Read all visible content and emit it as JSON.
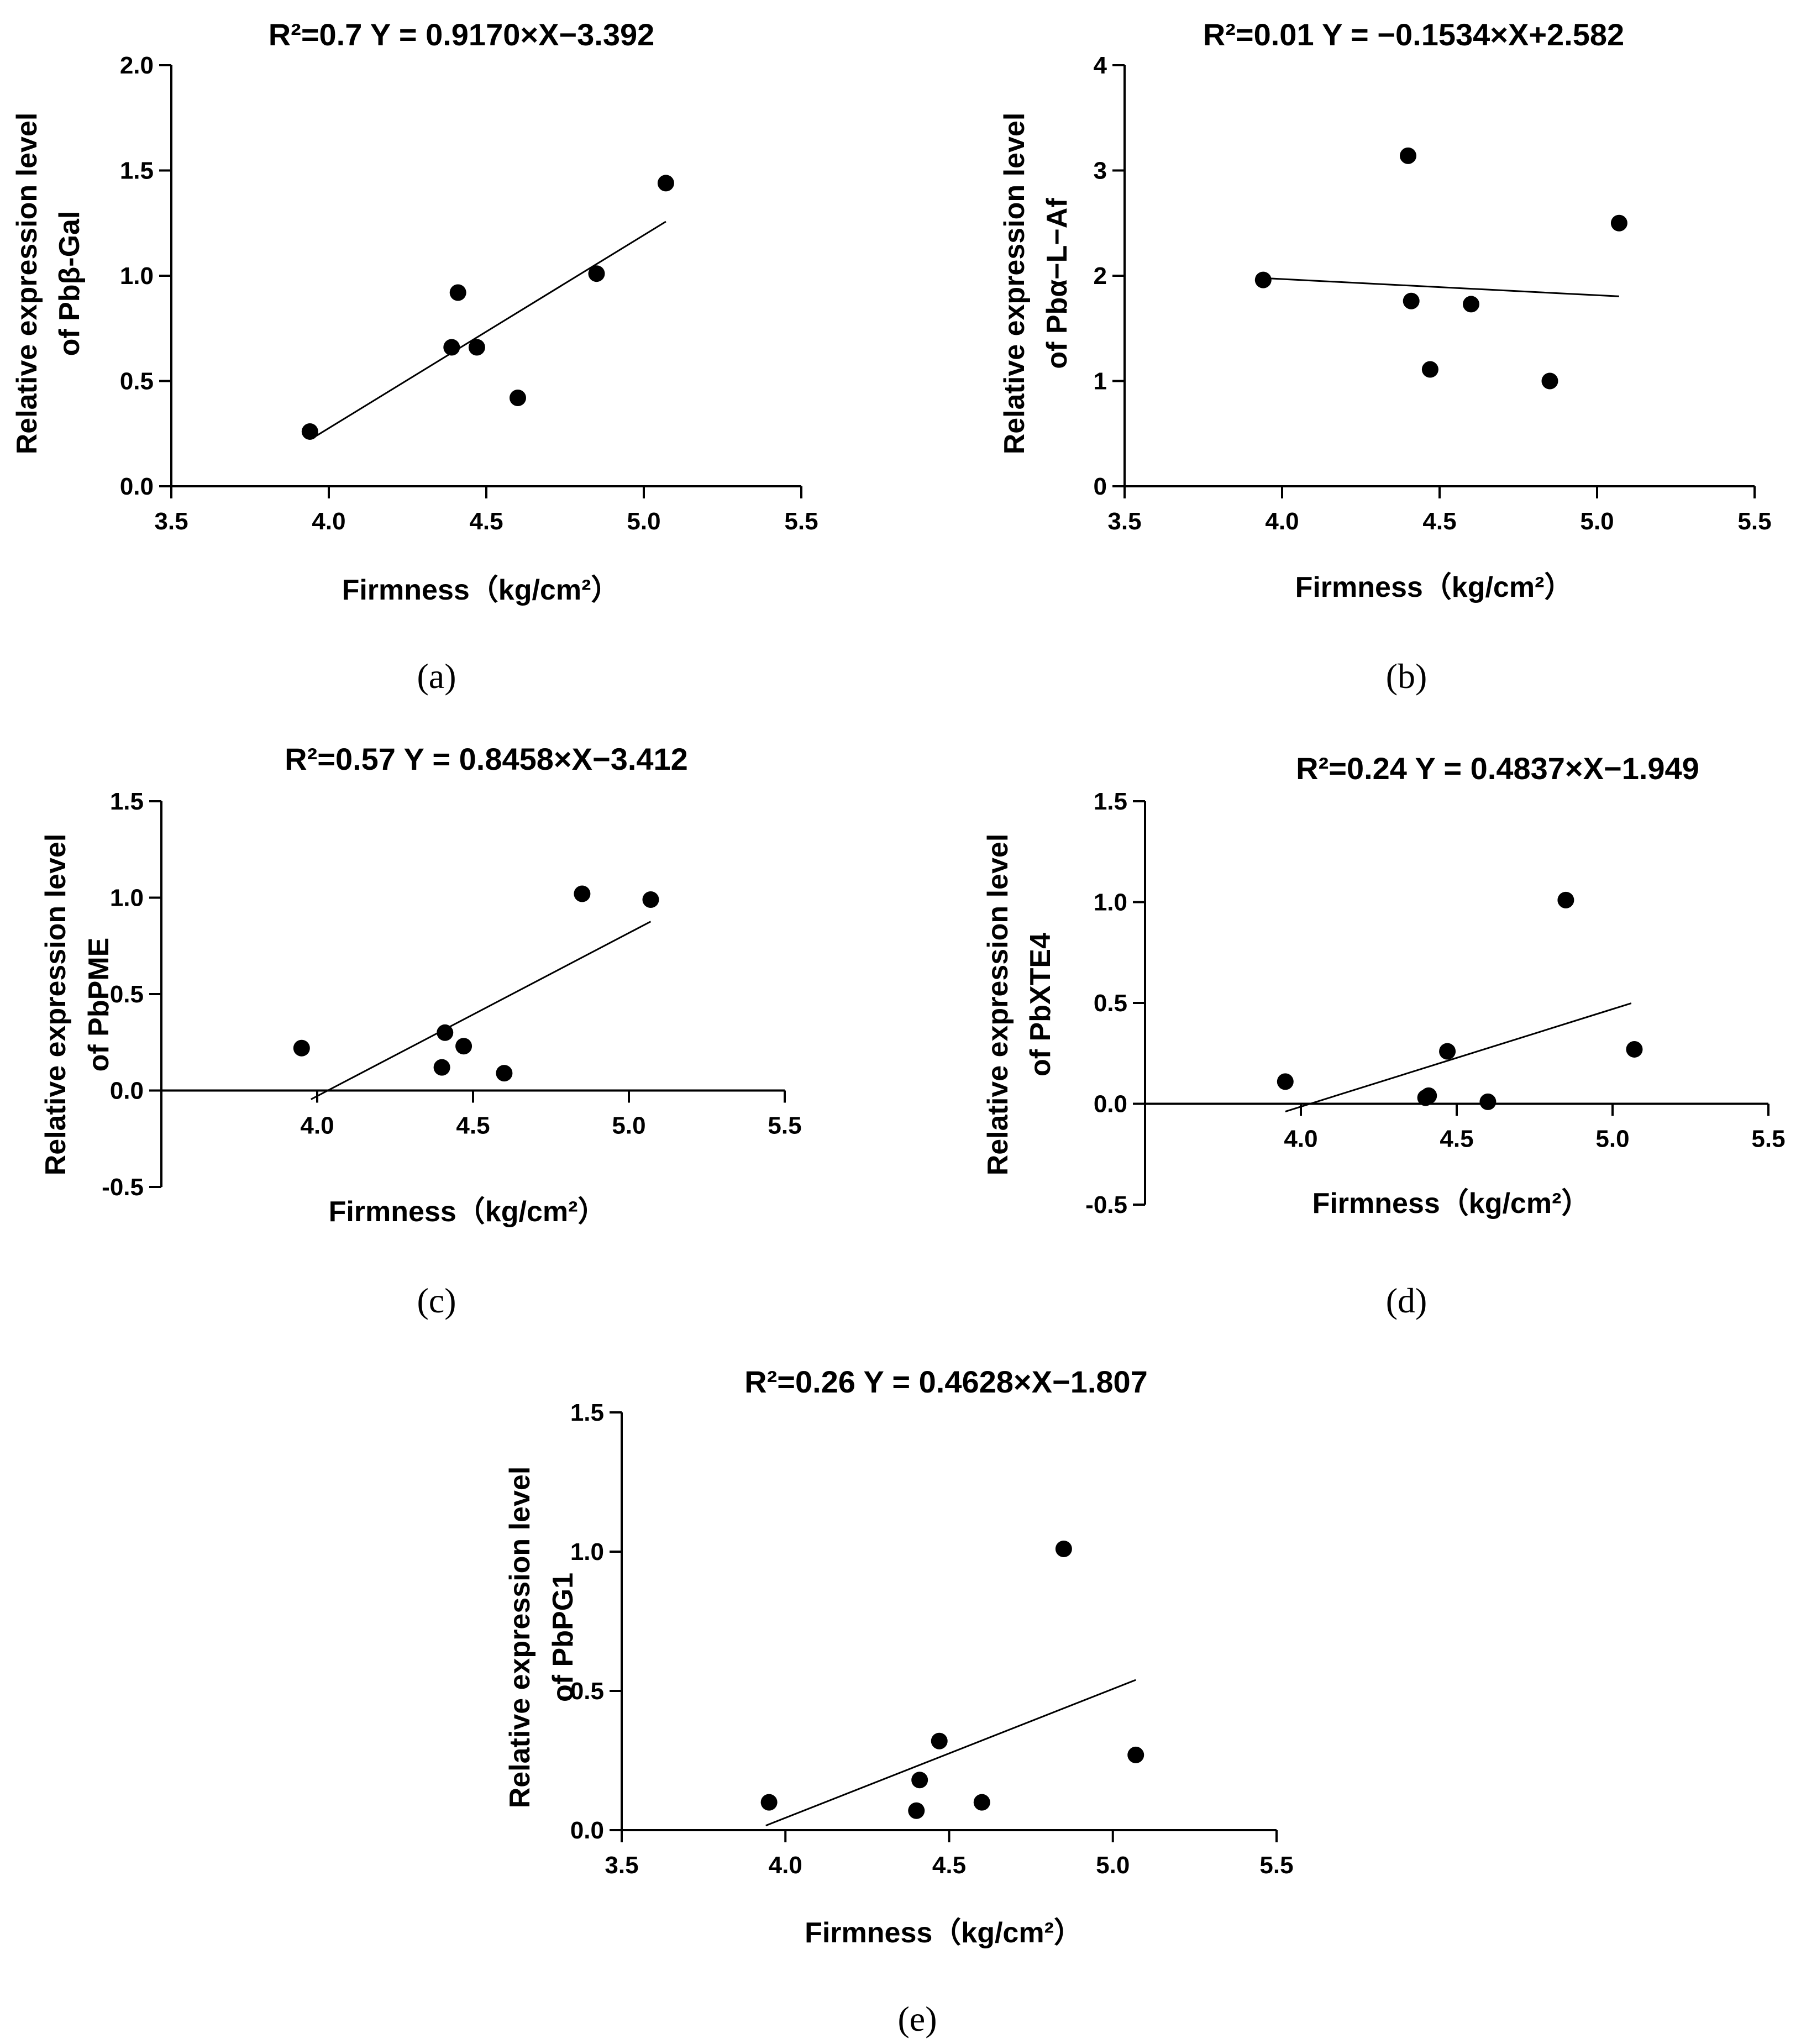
{
  "chart_data": [
    {
      "type": "scatter",
      "panel": "(a)",
      "title": "R²=0.7    Y = 0.9170×X−3.392",
      "ylabel": [
        "Relative expression level",
        "of Pbβ-Gal"
      ],
      "xlabel": "Firmness（kg/cm²）",
      "xlim": [
        3.5,
        5.5
      ],
      "ylim": [
        0.0,
        2.0
      ],
      "x_ticks": [
        "3.5",
        "4.0",
        "4.5",
        "5.0",
        "5.5"
      ],
      "y_ticks": [
        "0.0",
        "0.5",
        "1.0",
        "1.5",
        "2.0"
      ],
      "points": [
        [
          3.94,
          0.26
        ],
        [
          4.39,
          0.66
        ],
        [
          4.41,
          0.92
        ],
        [
          4.47,
          0.66
        ],
        [
          4.6,
          0.42
        ],
        [
          4.85,
          1.01
        ],
        [
          5.07,
          1.44
        ]
      ],
      "fit": {
        "slope": 0.917,
        "intercept": -3.392,
        "x_range": [
          3.95,
          5.07
        ]
      }
    },
    {
      "type": "scatter",
      "panel": "(b)",
      "title": "R²=0.01  Y = −0.1534×X+2.582",
      "ylabel": [
        "Relative expression level",
        "of Pbα−L−Af"
      ],
      "xlabel": "Firmness（kg/cm²）",
      "xlim": [
        3.5,
        5.5
      ],
      "ylim": [
        0,
        4
      ],
      "x_ticks": [
        "3.5",
        "4.0",
        "4.5",
        "5.0",
        "5.5"
      ],
      "y_ticks": [
        "0",
        "1",
        "2",
        "3",
        "4"
      ],
      "points": [
        [
          3.94,
          1.96
        ],
        [
          4.4,
          3.14
        ],
        [
          4.41,
          1.76
        ],
        [
          4.47,
          1.11
        ],
        [
          4.6,
          1.73
        ],
        [
          4.85,
          1.0
        ],
        [
          5.07,
          2.5
        ]
      ],
      "fit": {
        "slope": -0.1534,
        "intercept": 2.582,
        "x_range": [
          3.94,
          5.07
        ]
      }
    },
    {
      "type": "scatter",
      "panel": "(c)",
      "title": "R²=0.57  Y = 0.8458×X−3.412",
      "ylabel": [
        "Relative expression level",
        "of PbPME"
      ],
      "xlabel": "Firmness（kg/cm²）",
      "xlim": [
        3.5,
        5.5
      ],
      "ylim": [
        -0.5,
        1.5
      ],
      "x_ticks": [
        "4.0",
        "4.5",
        "5.0",
        "5.5"
      ],
      "y_ticks": [
        "-0.5",
        "0.0",
        "0.5",
        "1.0",
        "1.5"
      ],
      "points": [
        [
          3.95,
          0.22
        ],
        [
          4.4,
          0.12
        ],
        [
          4.41,
          0.3
        ],
        [
          4.47,
          0.23
        ],
        [
          4.6,
          0.09
        ],
        [
          4.85,
          1.02
        ],
        [
          5.07,
          0.99
        ]
      ],
      "fit": {
        "slope": 0.8458,
        "intercept": -3.412,
        "x_range": [
          3.98,
          5.07
        ]
      }
    },
    {
      "type": "scatter",
      "panel": "(d)",
      "title": "R²=0.24    Y = 0.4837×X−1.949",
      "ylabel": [
        "Relative expression level",
        "of PbXTE4"
      ],
      "xlabel": "Firmness（kg/cm²）",
      "xlim": [
        3.5,
        5.5
      ],
      "ylim": [
        -0.5,
        1.5
      ],
      "x_ticks": [
        "4.0",
        "4.5",
        "5.0",
        "5.5"
      ],
      "y_ticks": [
        "-0.5",
        "0.0",
        "0.5",
        "1.0",
        "1.5"
      ],
      "points": [
        [
          3.95,
          0.11
        ],
        [
          4.4,
          0.03
        ],
        [
          4.41,
          0.04
        ],
        [
          4.47,
          0.26
        ],
        [
          4.6,
          0.01
        ],
        [
          4.85,
          1.01
        ],
        [
          5.07,
          0.27
        ]
      ],
      "fit": {
        "slope": 0.4837,
        "intercept": -1.949,
        "x_range": [
          3.95,
          5.06
        ]
      }
    },
    {
      "type": "scatter",
      "panel": "(e)",
      "title": "R²=0.26  Y = 0.4628×X−1.807",
      "ylabel": [
        "Relative expression level",
        "of PbPG1"
      ],
      "xlabel": "Firmness（kg/cm²）",
      "xlim": [
        3.5,
        5.5
      ],
      "ylim": [
        0.0,
        1.5
      ],
      "x_ticks": [
        "3.5",
        "4.0",
        "4.5",
        "5.0",
        "5.5"
      ],
      "y_ticks": [
        "0.0",
        "0.5",
        "1.0",
        "1.5"
      ],
      "points": [
        [
          3.95,
          0.1
        ],
        [
          4.4,
          0.07
        ],
        [
          4.41,
          0.18
        ],
        [
          4.47,
          0.32
        ],
        [
          4.6,
          0.1
        ],
        [
          4.85,
          1.01
        ],
        [
          5.07,
          0.27
        ]
      ],
      "fit": {
        "slope": 0.4628,
        "intercept": -1.807,
        "x_range": [
          3.94,
          5.07
        ]
      }
    }
  ]
}
